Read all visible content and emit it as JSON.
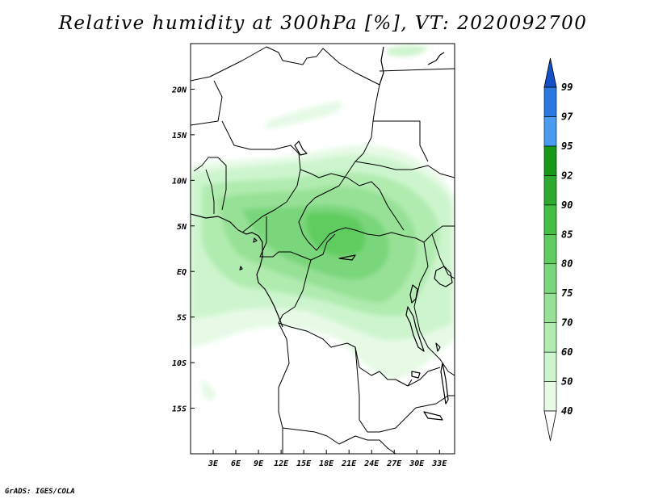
{
  "title": "Relative humidity at 300hPa [%], VT: 2020092700",
  "credit": "GrADS: IGES/COLA",
  "map": {
    "lon_range": [
      0,
      35
    ],
    "lat_range": [
      -20,
      25
    ],
    "x_ticks": [
      "3E",
      "6E",
      "9E",
      "12E",
      "15E",
      "18E",
      "21E",
      "24E",
      "27E",
      "30E",
      "33E"
    ],
    "x_tick_values": [
      3,
      6,
      9,
      12,
      15,
      18,
      21,
      24,
      27,
      30,
      33
    ],
    "y_ticks": [
      "20N",
      "15N",
      "10N",
      "5N",
      "EQ",
      "5S",
      "10S",
      "15S"
    ],
    "y_tick_values": [
      20,
      15,
      10,
      5,
      0,
      -5,
      -10,
      -15
    ]
  },
  "colorbar": {
    "levels": [
      "40",
      "50",
      "60",
      "70",
      "75",
      "80",
      "85",
      "90",
      "92",
      "95",
      "97",
      "99"
    ],
    "colors": [
      "#e6fae6",
      "#cdf5cd",
      "#b0ebb0",
      "#96e196",
      "#7ad67a",
      "#5fcc5f",
      "#45c045",
      "#2eab2e",
      "#189818",
      "#4a9cf0",
      "#2a78e0",
      "#1450c8"
    ],
    "outline_color": "#000000"
  }
}
